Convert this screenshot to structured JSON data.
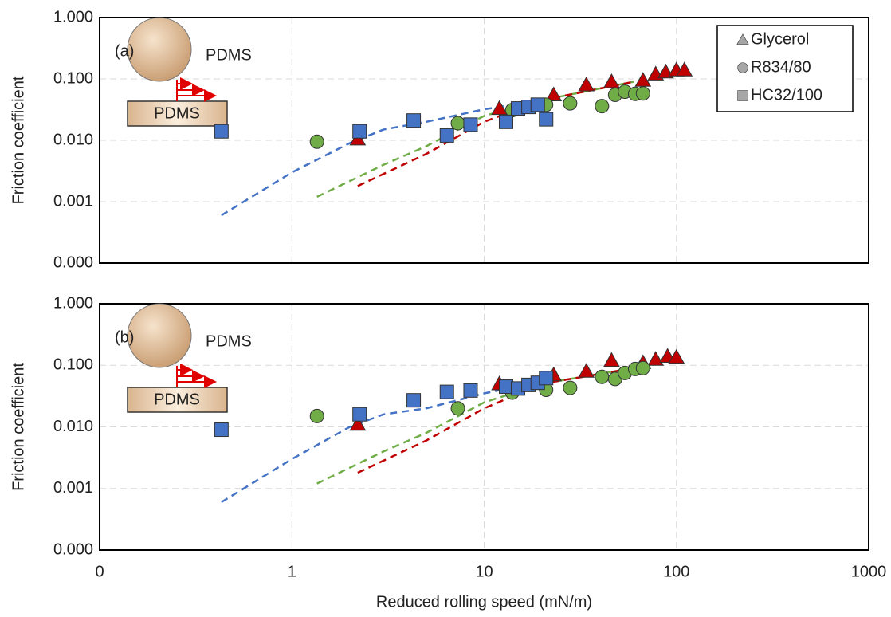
{
  "chart_data": [
    {
      "type": "scatter",
      "panel_label": "(a)",
      "inset_labels": [
        "PDMS",
        "PDMS"
      ],
      "ylabel": "Friction coefficient",
      "xscale": "log",
      "yscale": "log",
      "grid": true,
      "legend": "top-right",
      "legend_marker_color": "#a6a6a6",
      "xlim": [
        0.1,
        1000
      ],
      "ylim": [
        0.0001,
        1
      ],
      "yticks": [
        {
          "value": 0.0001,
          "label": "0.000"
        },
        0.001,
        {
          "value": 0.01,
          "label": "0.010"
        },
        {
          "value": 0.1,
          "label": "0.100"
        },
        {
          "value": 1,
          "label": "1.000"
        }
      ],
      "series": [
        {
          "name": "Glycerol",
          "marker": "triangle",
          "color": "#c00000",
          "x": [
            2.2,
            12,
            23,
            34,
            46,
            67,
            78,
            88,
            100,
            110
          ],
          "values": [
            0.0105,
            0.033,
            0.055,
            0.08,
            0.09,
            0.095,
            0.12,
            0.13,
            0.14,
            0.14
          ]
        },
        {
          "name": "R834/80",
          "marker": "circle",
          "color": "#70ad47",
          "x": [
            1.35,
            7.3,
            14,
            21,
            28,
            41,
            48,
            54,
            61,
            67
          ],
          "values": [
            0.0095,
            0.019,
            0.031,
            0.038,
            0.04,
            0.036,
            0.055,
            0.062,
            0.057,
            0.058
          ]
        },
        {
          "name": "HC32/100",
          "marker": "square",
          "color": "#4472c4",
          "x": [
            0.43,
            2.25,
            4.3,
            6.4,
            8.5,
            13,
            15,
            17,
            19,
            21
          ],
          "values": [
            0.014,
            0.014,
            0.021,
            0.012,
            0.018,
            0.02,
            0.033,
            0.035,
            0.038,
            0.022
          ]
        }
      ],
      "fit_lines": [
        {
          "color": "#4472c4",
          "x": [
            0.43,
            1,
            2,
            3,
            5,
            10,
            20
          ],
          "values": [
            0.0006,
            0.003,
            0.009,
            0.015,
            0.02,
            0.032,
            0.045
          ]
        },
        {
          "color": "#70ad47",
          "x": [
            1.35,
            3,
            5,
            10,
            20,
            60
          ],
          "values": [
            0.0012,
            0.004,
            0.008,
            0.025,
            0.045,
            0.09
          ]
        },
        {
          "color": "#c00000",
          "x": [
            2.2,
            5,
            10,
            20,
            60
          ],
          "values": [
            0.0018,
            0.006,
            0.02,
            0.045,
            0.09
          ]
        }
      ]
    },
    {
      "type": "scatter",
      "panel_label": "(b)",
      "inset_labels": [
        "PDMS",
        "PDMS"
      ],
      "ylabel": "Friction coefficient",
      "xlabel": "Reduced rolling speed (mN/m)",
      "xscale": "log",
      "yscale": "log",
      "grid": true,
      "xlim": [
        0.1,
        1000
      ],
      "ylim": [
        0.0001,
        1
      ],
      "xticks": [
        {
          "value": 0.1,
          "label": "0"
        },
        1,
        10,
        100,
        1000
      ],
      "yticks": [
        {
          "value": 0.0001,
          "label": "0.000"
        },
        0.001,
        {
          "value": 0.01,
          "label": "0.010"
        },
        {
          "value": 0.1,
          "label": "0.100"
        },
        {
          "value": 1,
          "label": "1.000"
        }
      ],
      "series": [
        {
          "name": "Glycerol",
          "marker": "triangle",
          "color": "#c00000",
          "x": [
            2.2,
            12,
            23,
            34,
            46,
            67,
            78,
            90,
            100
          ],
          "values": [
            0.011,
            0.05,
            0.07,
            0.08,
            0.12,
            0.11,
            0.125,
            0.14,
            0.135
          ]
        },
        {
          "name": "R834/80",
          "marker": "circle",
          "color": "#70ad47",
          "x": [
            1.35,
            7.3,
            14,
            21,
            28,
            41,
            48,
            54,
            61,
            67
          ],
          "values": [
            0.015,
            0.02,
            0.036,
            0.04,
            0.043,
            0.065,
            0.06,
            0.075,
            0.087,
            0.09
          ]
        },
        {
          "name": "HC32/100",
          "marker": "square",
          "color": "#4472c4",
          "x": [
            0.43,
            2.25,
            4.3,
            6.4,
            8.5,
            13,
            15,
            17,
            19,
            21
          ],
          "values": [
            0.009,
            0.016,
            0.027,
            0.037,
            0.039,
            0.045,
            0.042,
            0.048,
            0.052,
            0.062
          ]
        }
      ],
      "fit_lines": [
        {
          "color": "#4472c4",
          "x": [
            0.43,
            1,
            2,
            3,
            5,
            10,
            20
          ],
          "values": [
            0.0006,
            0.003,
            0.01,
            0.016,
            0.02,
            0.035,
            0.055
          ]
        },
        {
          "color": "#70ad47",
          "x": [
            1.35,
            3,
            5,
            10,
            20,
            60
          ],
          "values": [
            0.0012,
            0.004,
            0.008,
            0.025,
            0.05,
            0.09
          ]
        },
        {
          "color": "#c00000",
          "x": [
            2.2,
            5,
            10,
            20,
            60
          ],
          "values": [
            0.0018,
            0.006,
            0.02,
            0.05,
            0.09
          ]
        }
      ]
    }
  ]
}
